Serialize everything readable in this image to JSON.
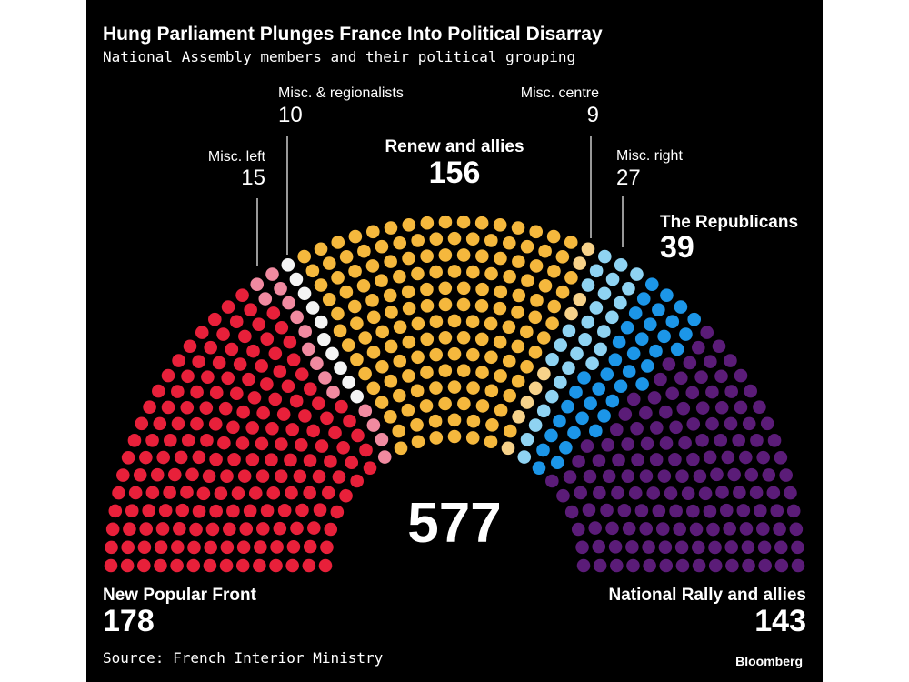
{
  "header": {
    "title": "Hung Parliament Plunges France Into Political Disarray",
    "subtitle": "National Assembly members and their political grouping"
  },
  "chart_data": {
    "type": "hemicycle",
    "title": "Hung Parliament Plunges France Into Political Disarray",
    "subtitle": "National Assembly members and their political grouping",
    "total_seats": 577,
    "total_label": "577",
    "series": [
      {
        "name": "New Popular Front",
        "value": 178,
        "value_label": "178",
        "color": "#e8203a"
      },
      {
        "name": "Misc. left",
        "value": 15,
        "value_label": "15",
        "color": "#f08aa0"
      },
      {
        "name": "Misc. & regionalists",
        "value": 10,
        "value_label": "10",
        "color": "#f4f4f4"
      },
      {
        "name": "Renew and allies",
        "value": 156,
        "value_label": "156",
        "color": "#f5b83d"
      },
      {
        "name": "Misc. centre",
        "value": 9,
        "value_label": "9",
        "color": "#f7d28a"
      },
      {
        "name": "Misc. right",
        "value": 27,
        "value_label": "27",
        "color": "#8fd3f2"
      },
      {
        "name": "The Republicans",
        "value": 39,
        "value_label": "39",
        "color": "#1c96e8"
      },
      {
        "name": "National Rally and allies",
        "value": 143,
        "value_label": "143",
        "color": "#5b1c78"
      }
    ]
  },
  "footer": {
    "source": "Source: French Interior Ministry",
    "brand": "Bloomberg"
  }
}
